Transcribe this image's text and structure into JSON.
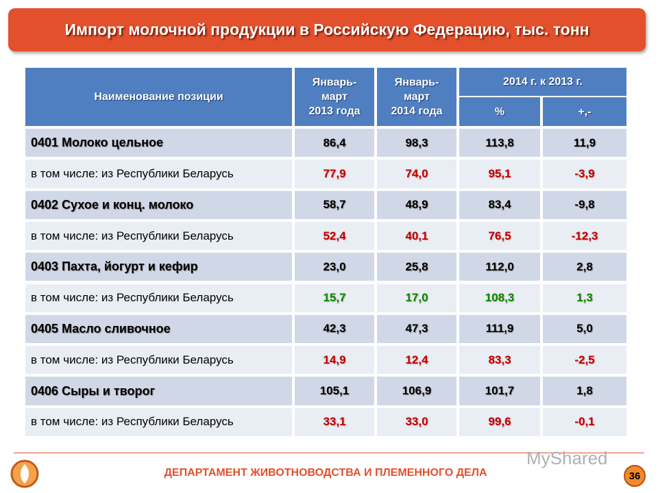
{
  "header": {
    "title": "Импорт молочной продукции в Российскую Федерацию, тыс. тонн"
  },
  "table": {
    "header": {
      "name": "Наименование позиции",
      "col2013": [
        "Январь-",
        "март",
        "2013 года"
      ],
      "col2014": [
        "Январь-",
        "март",
        "2014 года"
      ],
      "compare": "2014 г. к 2013 г.",
      "percent": "%",
      "diff": "+,-"
    },
    "rows": [
      {
        "label": "0401 Молоко цельное",
        "kind": "product",
        "color": "#000000",
        "values": [
          "86,4",
          "98,3",
          "113,8",
          "11,9"
        ]
      },
      {
        "label": "в том числе: из Республики Беларусь",
        "kind": "sub",
        "color": "#c00000",
        "values": [
          "77,9",
          "74,0",
          "95,1",
          "-3,9"
        ]
      },
      {
        "label": "0402 Сухое и конц. молоко",
        "kind": "product",
        "color": "#000000",
        "values": [
          "58,7",
          "48,9",
          "83,4",
          "-9,8"
        ]
      },
      {
        "label": "в том числе: из Республики Беларусь",
        "kind": "sub",
        "color": "#c00000",
        "values": [
          "52,4",
          "40,1",
          "76,5",
          "-12,3"
        ]
      },
      {
        "label": "0403 Пахта, йогурт и кефир",
        "kind": "product",
        "color": "#000000",
        "values": [
          "23,0",
          "25,8",
          "112,0",
          "2,8"
        ]
      },
      {
        "label": "в том числе: из Республики Беларусь",
        "kind": "sub",
        "color": "#008a00",
        "values": [
          "15,7",
          "17,0",
          "108,3",
          "1,3"
        ]
      },
      {
        "label": "0405 Масло сливочное",
        "kind": "product",
        "color": "#000000",
        "values": [
          "42,3",
          "47,3",
          "111,9",
          "5,0"
        ]
      },
      {
        "label": "в том числе: из Республики Беларусь",
        "kind": "sub",
        "color": "#c00000",
        "values": [
          "14,9",
          "12,4",
          "83,3",
          "-2,5"
        ]
      },
      {
        "label": "0406 Сыры и творог",
        "kind": "product",
        "color": "#000000",
        "values": [
          "105,1",
          "106,9",
          "101,7",
          "1,8"
        ]
      },
      {
        "label": "в том числе: из Республики Беларусь",
        "kind": "sub",
        "color": "#c00000",
        "values": [
          "33,1",
          "33,0",
          "99,6",
          "-0,1"
        ]
      }
    ]
  },
  "footer": {
    "department": "ДЕПАРТАМЕНТ ЖИВОТНОВОДСТВА И ПЛЕМЕННОГО ДЕЛА",
    "page": "36",
    "watermark": "MyShared"
  }
}
